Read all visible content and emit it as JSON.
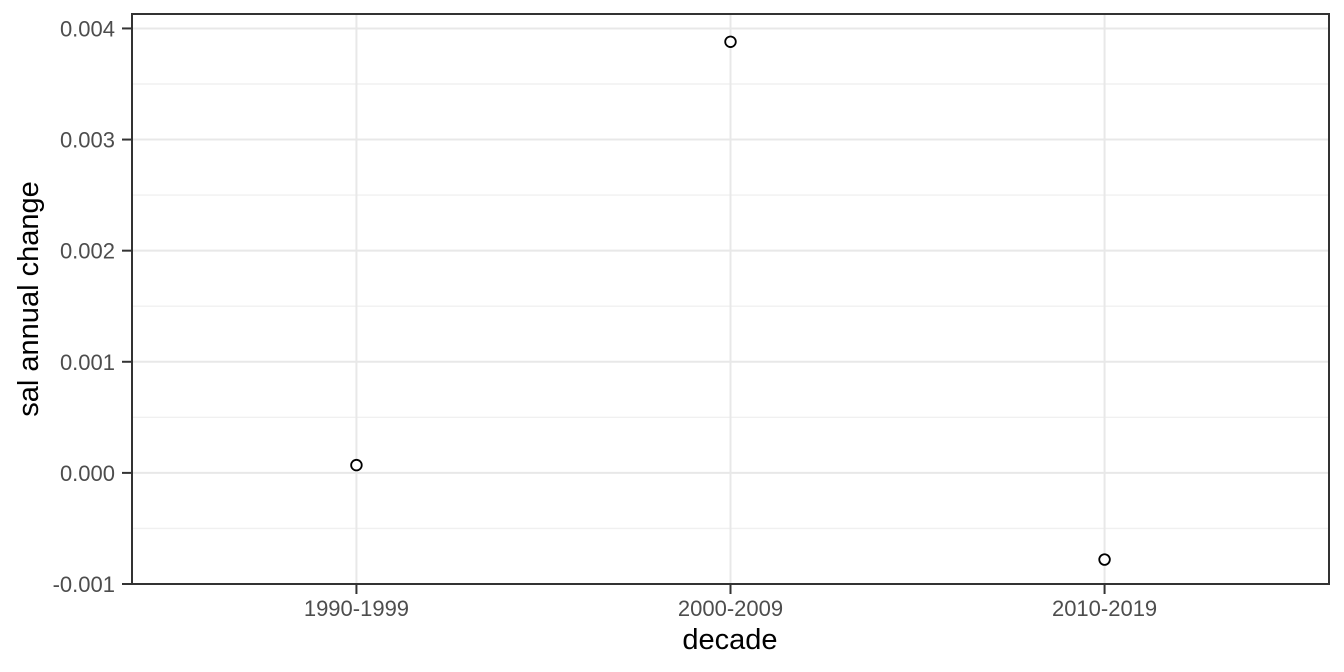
{
  "chart_data": {
    "type": "scatter",
    "title": "",
    "xlabel": "decade",
    "ylabel": "sal annual change",
    "categories": [
      "1990-1999",
      "2000-2009",
      "2010-2019"
    ],
    "values": [
      7e-05,
      0.00388,
      -0.00078
    ],
    "ylim": [
      -0.001,
      0.00413
    ],
    "y_major_ticks": [
      0.004,
      0.003,
      0.002,
      0.001,
      0.0,
      -0.001
    ],
    "y_tick_labels": [
      "0.004",
      "0.003",
      "0.002",
      "0.001",
      "0.000",
      "-0.001"
    ],
    "y_minor_ticks": [
      0.0035,
      0.0025,
      0.0015,
      0.0005,
      -0.0005
    ],
    "grid": true,
    "legend": "none",
    "marker": {
      "shape": "open-circle",
      "radius": 5.3,
      "stroke": "#000000",
      "fill": "#ffffff",
      "stroke_width": 1.8
    }
  },
  "colors": {
    "background": "#ffffff",
    "panel_background": "#ffffff",
    "panel_border": "#333333",
    "grid_major": "#e8e8e8",
    "grid_minor": "#f0f0f0",
    "tick_mark": "#333333",
    "tick_label": "#4d4d4d",
    "axis_title": "#000000"
  }
}
